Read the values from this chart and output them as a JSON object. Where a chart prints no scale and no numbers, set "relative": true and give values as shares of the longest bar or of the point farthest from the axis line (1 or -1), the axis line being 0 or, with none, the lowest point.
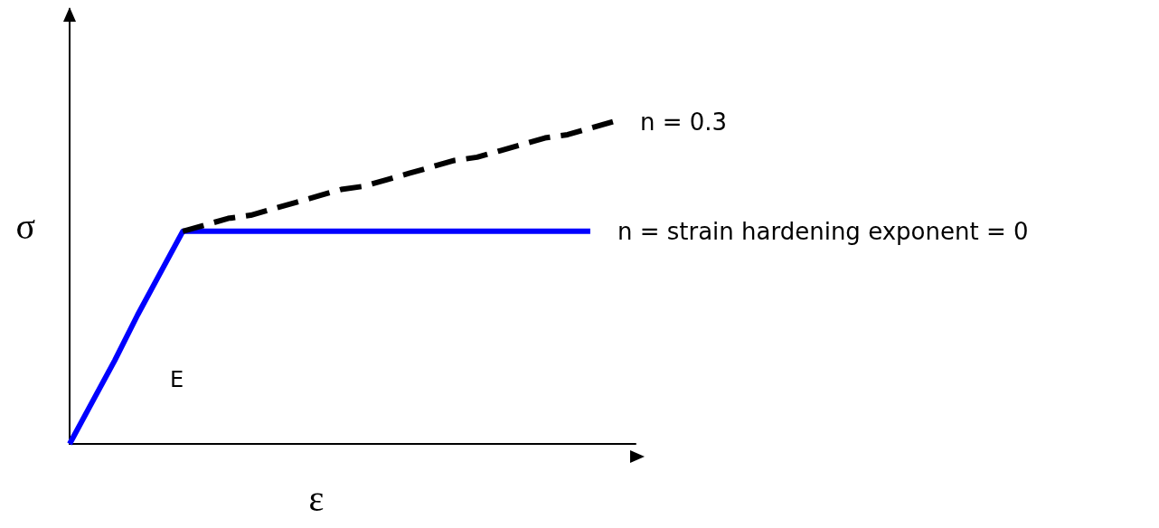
{
  "chart_data": {
    "type": "line",
    "relative": true,
    "xlabel": "ε",
    "ylabel": "σ",
    "categories": [
      null,
      null,
      null,
      null,
      null,
      null,
      null,
      null,
      null,
      null,
      null,
      null,
      null,
      null,
      null,
      null,
      null,
      null,
      null,
      null,
      null,
      null,
      null,
      null,
      null
    ],
    "series": [
      {
        "name": "n = strain hardening exponent = 0",
        "color": "#0000ff",
        "values": [
          0,
          0.13,
          0.26,
          0.4,
          0.53,
          0.66,
          0.66,
          0.66,
          0.66,
          0.66,
          0.66,
          0.66,
          0.66,
          0.66,
          0.66,
          0.66,
          0.66,
          0.66,
          0.66,
          0.66,
          0.66,
          0.66,
          0.66,
          0.66,
          null
        ],
        "line_style": "solid"
      },
      {
        "name": "n = 0.3",
        "color": "#000000",
        "values": [
          null,
          null,
          null,
          null,
          null,
          0.66,
          0.68,
          0.7,
          0.71,
          0.73,
          0.75,
          0.77,
          0.79,
          0.8,
          0.82,
          0.84,
          0.86,
          0.88,
          0.89,
          0.91,
          0.93,
          0.95,
          0.96,
          0.98,
          1.0
        ],
        "line_style": "dashed"
      }
    ],
    "annotations": [
      "E"
    ]
  }
}
